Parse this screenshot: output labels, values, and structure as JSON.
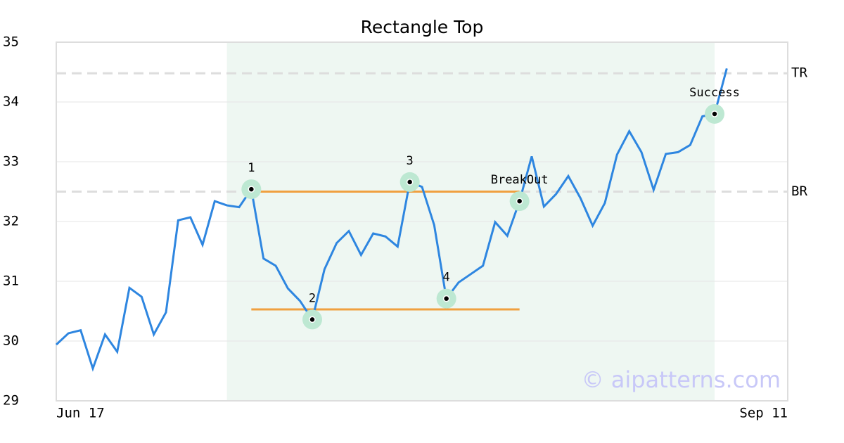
{
  "chart_data": {
    "type": "line",
    "title": "Rectangle Top",
    "color": "#2e86e0",
    "categories": [
      "Jun 17",
      null,
      null,
      null,
      null,
      null,
      null,
      null,
      null,
      null,
      null,
      null,
      null,
      null,
      null,
      null,
      null,
      null,
      null,
      null,
      null,
      null,
      null,
      null,
      null,
      null,
      null,
      null,
      null,
      null,
      null,
      null,
      null,
      null,
      null,
      null,
      null,
      null,
      null,
      null,
      null,
      null,
      null,
      null,
      null,
      null,
      null,
      null,
      null,
      null,
      null,
      null,
      null,
      null,
      null,
      null,
      null,
      null,
      null,
      null,
      "Sep 11"
    ],
    "values": [
      29.94,
      30.13,
      30.18,
      29.54,
      30.11,
      29.82,
      30.89,
      30.74,
      30.11,
      30.48,
      32.02,
      32.07,
      31.61,
      32.34,
      32.27,
      32.24,
      32.54,
      31.38,
      31.26,
      30.88,
      30.67,
      30.36,
      31.2,
      31.64,
      31.84,
      31.44,
      31.8,
      31.75,
      31.58,
      32.66,
      32.58,
      31.94,
      30.71,
      30.98,
      31.12,
      31.26,
      31.99,
      31.76,
      32.34,
      33.09,
      32.25,
      32.46,
      32.76,
      32.39,
      31.93,
      32.31,
      33.12,
      33.51,
      33.16,
      32.53,
      33.13,
      33.16,
      33.28,
      33.76,
      33.8,
      34.56,
      null,
      null,
      null,
      null,
      null
    ],
    "ylim": [
      29,
      35
    ],
    "yticks": [
      29,
      30,
      31,
      32,
      33,
      34,
      35
    ],
    "grid": true,
    "shaded_range": [
      14,
      54
    ],
    "annotations": [
      {
        "index": 16,
        "label": "1"
      },
      {
        "index": 21,
        "label": "2"
      },
      {
        "index": 29,
        "label": "3"
      },
      {
        "index": 32,
        "label": "4"
      },
      {
        "index": 38,
        "label": "BreakOut"
      },
      {
        "index": 54,
        "label": "Success"
      }
    ],
    "rectangle": {
      "top": 32.5,
      "bottom": 30.53,
      "start": 16,
      "end": 38,
      "color": "#f0a040"
    },
    "levels": [
      {
        "label": "TR",
        "value": 34.48
      },
      {
        "label": "BR",
        "value": 32.5
      }
    ],
    "watermark": "© aipatterns.com"
  }
}
